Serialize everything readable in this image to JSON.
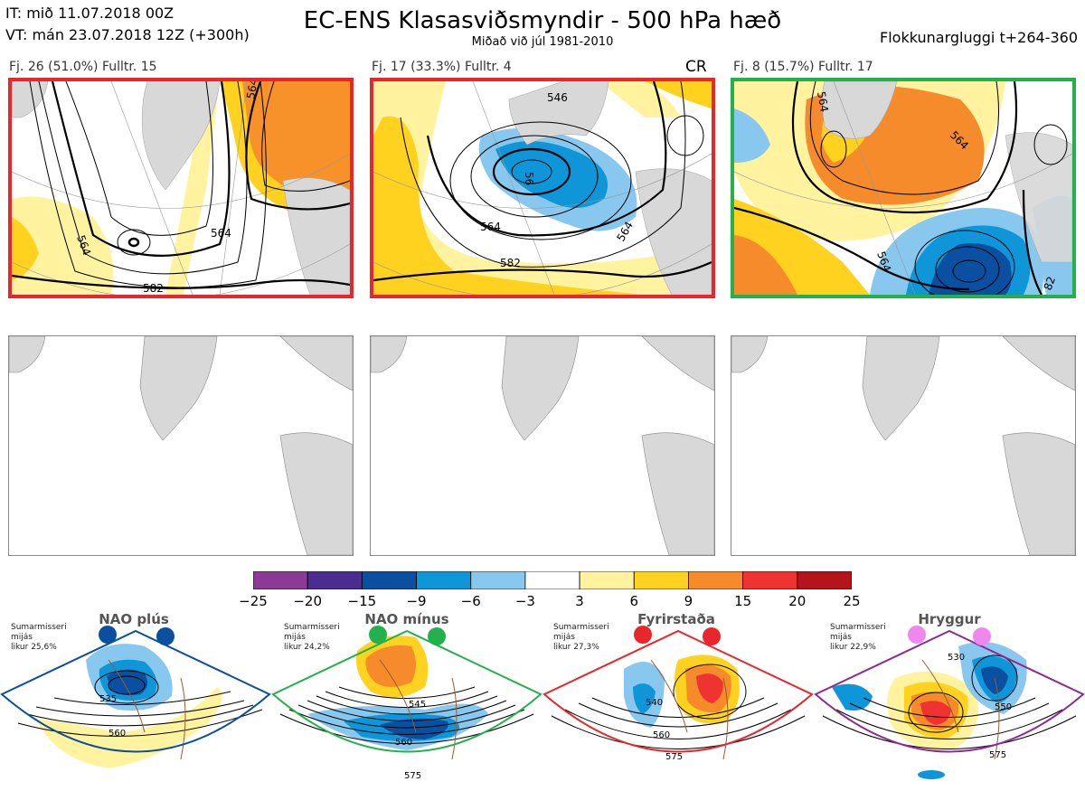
{
  "header": {
    "it": "IT: mið 11.07.2018 00Z",
    "vt": "VT: mán 23.07.2018 12Z  (+300h)",
    "title": "EC-ENS Klasasviðsmyndir - 500 hPa hæð",
    "subtitle": "Miðað við júl 1981-2010",
    "window": "Flokkunargluggi t+264-360"
  },
  "clusters": [
    {
      "label": "Fj. 26 (51.0%)  Fulltr. 15",
      "border_color": "#e8262b",
      "contours": [
        "564",
        "564",
        "564",
        "582"
      ]
    },
    {
      "label": "Fj. 17 (33.3%)  Fulltr. 4",
      "border_color": "#e8262b",
      "tag": "CR",
      "contours": [
        "546",
        "56",
        "564",
        "582",
        "564"
      ]
    },
    {
      "label": "Fj. 8 (15.7%)  Fulltr. 17",
      "border_color": "#22b14c",
      "contours": [
        "564",
        "564",
        "564",
        "82"
      ]
    }
  ],
  "colorbar": {
    "ticks": [
      "−25",
      "−20",
      "−15",
      "−9",
      "−6",
      "−3",
      "3",
      "6",
      "9",
      "15",
      "20",
      "25"
    ],
    "colors": [
      "#8b3a96",
      "#4b2d91",
      "#0a4fa0",
      "#0e96d8",
      "#88c8ee",
      "#ffffff",
      "#fff3a0",
      "#ffd21f",
      "#f58b2a",
      "#ee3330",
      "#b5141b"
    ]
  },
  "regimes": [
    {
      "name": "NAO plús",
      "meta": [
        "Sumarmisseri",
        "mijás",
        "likur 25,6%"
      ],
      "color": "#0a4fa0",
      "contours": [
        "535",
        "560"
      ]
    },
    {
      "name": "NAO mínus",
      "meta": [
        "Sumarmisseri",
        "mijás",
        "likur 24,2%"
      ],
      "color": "#22b14c",
      "contours": [
        "545",
        "560",
        "575"
      ]
    },
    {
      "name": "Fyrirstaða",
      "meta": [
        "Sumarmisseri",
        "mijás",
        "likur 27,3%"
      ],
      "color": "#e8262b",
      "contours": [
        "540",
        "560",
        "575"
      ]
    },
    {
      "name": "Hryggur",
      "meta": [
        "Sumarmisseri",
        "mijás",
        "likur 22,9%"
      ],
      "color": "#8e2a96",
      "marker_color": "#ee88ee",
      "contours": [
        "530",
        "550",
        "575"
      ]
    }
  ]
}
